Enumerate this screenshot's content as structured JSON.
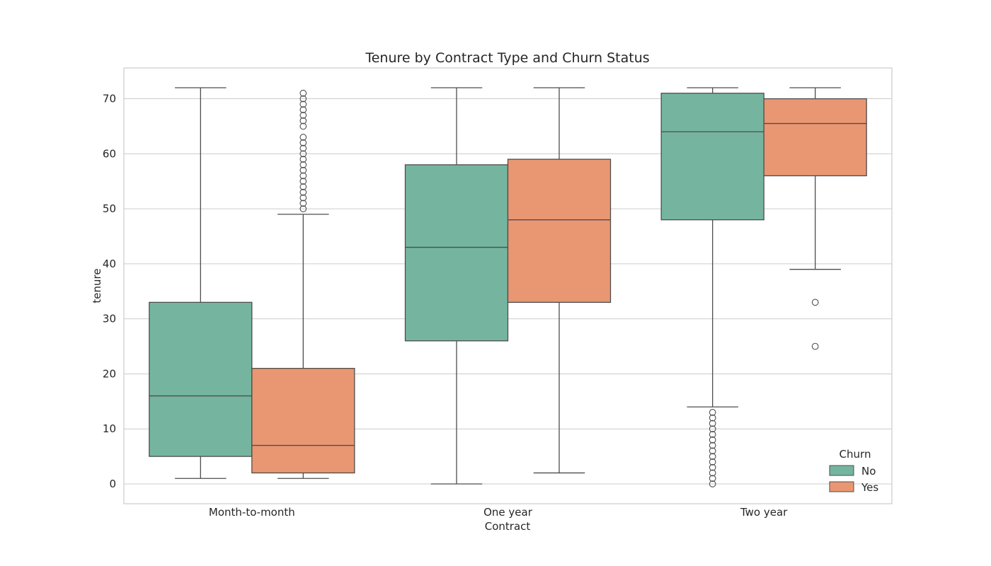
{
  "chart_data": {
    "type": "box",
    "title": "Tenure by Contract Type and Churn Status",
    "xlabel": "Contract",
    "ylabel": "tenure",
    "ylim": [
      -3.6,
      75.6
    ],
    "yticks": [
      0,
      10,
      20,
      30,
      40,
      50,
      60,
      70
    ],
    "categories": [
      "Month-to-month",
      "One year",
      "Two year"
    ],
    "grid": true,
    "legend": {
      "title": "Churn",
      "position": "bottom-right"
    },
    "series": [
      {
        "name": "No",
        "color": "#75b5a0",
        "boxes": [
          {
            "whisker_low": 1,
            "q1": 5,
            "median": 16,
            "q3": 33,
            "whisker_high": 72,
            "outliers": []
          },
          {
            "whisker_low": 0,
            "q1": 26,
            "median": 43,
            "q3": 58,
            "whisker_high": 72,
            "outliers": []
          },
          {
            "whisker_low": 14,
            "q1": 48,
            "median": 64,
            "q3": 71,
            "whisker_high": 72,
            "outliers": [
              0,
              1,
              2,
              3,
              4,
              5,
              6,
              7,
              8,
              9,
              10,
              11,
              12,
              13
            ]
          }
        ]
      },
      {
        "name": "Yes",
        "color": "#e99773",
        "boxes": [
          {
            "whisker_low": 1,
            "q1": 2,
            "median": 7,
            "q3": 21,
            "whisker_high": 49,
            "outliers": [
              50,
              51,
              52,
              53,
              54,
              55,
              56,
              57,
              58,
              59,
              60,
              61,
              62,
              63,
              65,
              66,
              67,
              68,
              69,
              70,
              71
            ]
          },
          {
            "whisker_low": 2,
            "q1": 33,
            "median": 48,
            "q3": 59,
            "whisker_high": 72,
            "outliers": []
          },
          {
            "whisker_low": 39,
            "q1": 56,
            "median": 65.5,
            "q3": 70,
            "whisker_high": 72,
            "outliers": [
              25,
              33
            ]
          }
        ]
      }
    ]
  }
}
